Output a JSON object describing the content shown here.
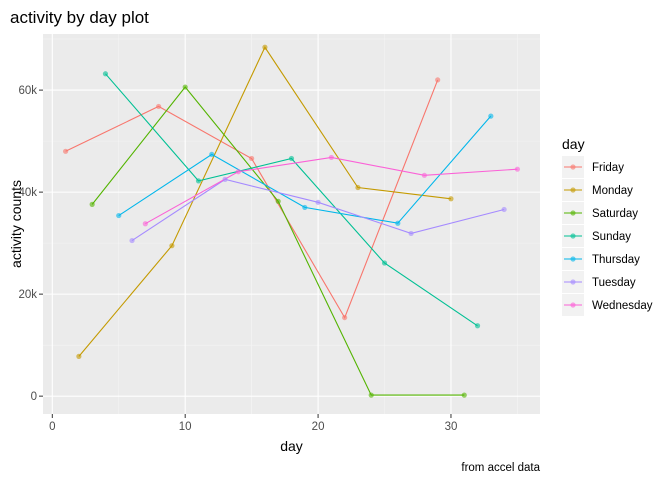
{
  "chart_data": {
    "type": "line",
    "title": "activity by day plot",
    "xlabel": "day",
    "ylabel": "activity counts",
    "caption": "from accel data",
    "xlim": [
      -0.7,
      36.7
    ],
    "ylim": [
      -3500,
      71000
    ],
    "x_ticks": [
      0,
      10,
      20,
      30
    ],
    "y_ticks": [
      0,
      20000,
      40000,
      60000
    ],
    "y_tick_labels": [
      "0",
      "20k",
      "40k",
      "60k"
    ],
    "grid": true,
    "legend": {
      "title": "day",
      "position": "right"
    },
    "series": [
      {
        "name": "Friday",
        "color": "#F8766D",
        "points": [
          [
            1,
            48000
          ],
          [
            8,
            56800
          ],
          [
            15,
            46600
          ],
          [
            22,
            15400
          ],
          [
            29,
            62000
          ]
        ]
      },
      {
        "name": "Monday",
        "color": "#C49A00",
        "points": [
          [
            2,
            7800
          ],
          [
            9,
            29500
          ],
          [
            16,
            68400
          ],
          [
            23,
            40900
          ],
          [
            30,
            38700
          ]
        ]
      },
      {
        "name": "Saturday",
        "color": "#53B400",
        "points": [
          [
            3,
            37600
          ],
          [
            10,
            60600
          ],
          [
            17,
            38200
          ],
          [
            24,
            200
          ],
          [
            31,
            200
          ]
        ]
      },
      {
        "name": "Sunday",
        "color": "#00C094",
        "points": [
          [
            4,
            63200
          ],
          [
            11,
            42200
          ],
          [
            18,
            46600
          ],
          [
            25,
            26100
          ],
          [
            32,
            13800
          ]
        ]
      },
      {
        "name": "Thursday",
        "color": "#00B6EB",
        "points": [
          [
            5,
            35400
          ],
          [
            12,
            47400
          ],
          [
            19,
            37000
          ],
          [
            26,
            33900
          ],
          [
            33,
            54900
          ]
        ]
      },
      {
        "name": "Tuesday",
        "color": "#A58AFF",
        "points": [
          [
            6,
            30500
          ],
          [
            13,
            42500
          ],
          [
            20,
            38000
          ],
          [
            27,
            31900
          ],
          [
            34,
            36600
          ]
        ]
      },
      {
        "name": "Wednesday",
        "color": "#FB61D7",
        "points": [
          [
            7,
            33800
          ],
          [
            14,
            44000
          ],
          [
            21,
            46800
          ],
          [
            28,
            43300
          ],
          [
            35,
            44500
          ]
        ]
      }
    ]
  }
}
